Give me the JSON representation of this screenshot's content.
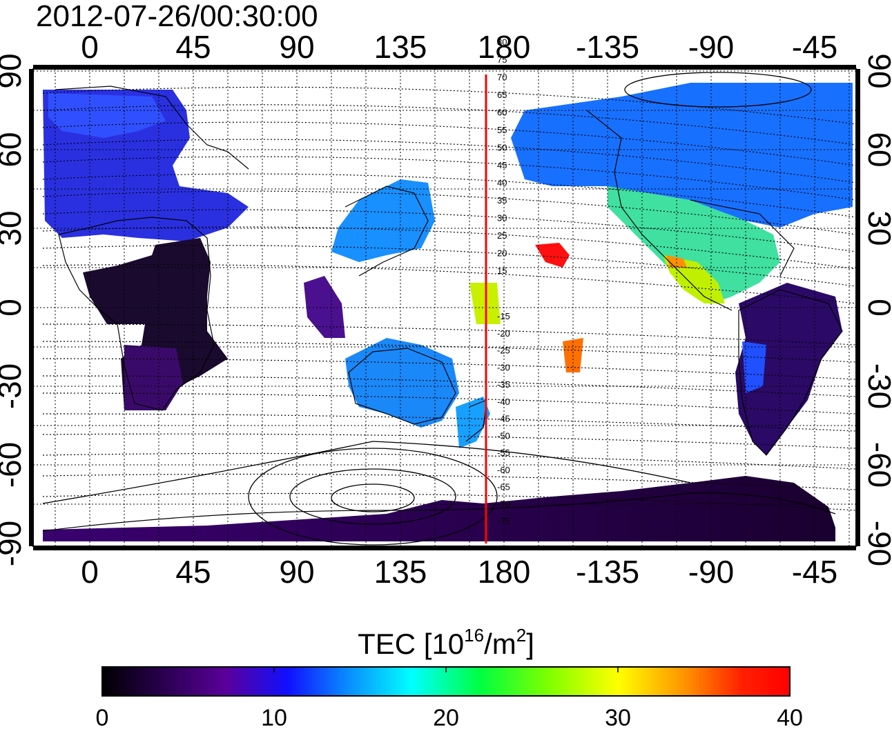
{
  "timestamp": "2012-07-26/00:30:00",
  "map": {
    "lon_ticks": [
      "0",
      "45",
      "90",
      "135",
      "180",
      "-135",
      "-90",
      "-45"
    ],
    "lat_ticks": [
      "90",
      "60",
      "30",
      "0",
      "-30",
      "-60",
      "-90"
    ],
    "meridian_marker_lon": 172,
    "meridian_marker_color": "#ff0000",
    "magnetic_latitude_labels": [
      "80",
      "75",
      "70",
      "65",
      "60",
      "55",
      "50",
      "45",
      "40",
      "35",
      "30",
      "25",
      "20",
      "15",
      "-15",
      "-20",
      "-25",
      "-30",
      "-35",
      "-40",
      "-45",
      "-50",
      "-55",
      "-60",
      "-65",
      "-70",
      "-75"
    ]
  },
  "colorbar": {
    "label_main": "TEC  [10",
    "label_sup1": "16",
    "label_mid": "/m",
    "label_sup2": "2",
    "label_end": "]",
    "min": 0,
    "max": 40,
    "ticks": [
      "0",
      "10",
      "20",
      "30",
      "40"
    ],
    "colormap": [
      "#000000",
      "#2a0050",
      "#5a009a",
      "#0a10ff",
      "#0aa0ff",
      "#00ffff",
      "#00ff40",
      "#b0ff00",
      "#ffff00",
      "#ff9000",
      "#ff2000",
      "#ff0000"
    ]
  }
}
